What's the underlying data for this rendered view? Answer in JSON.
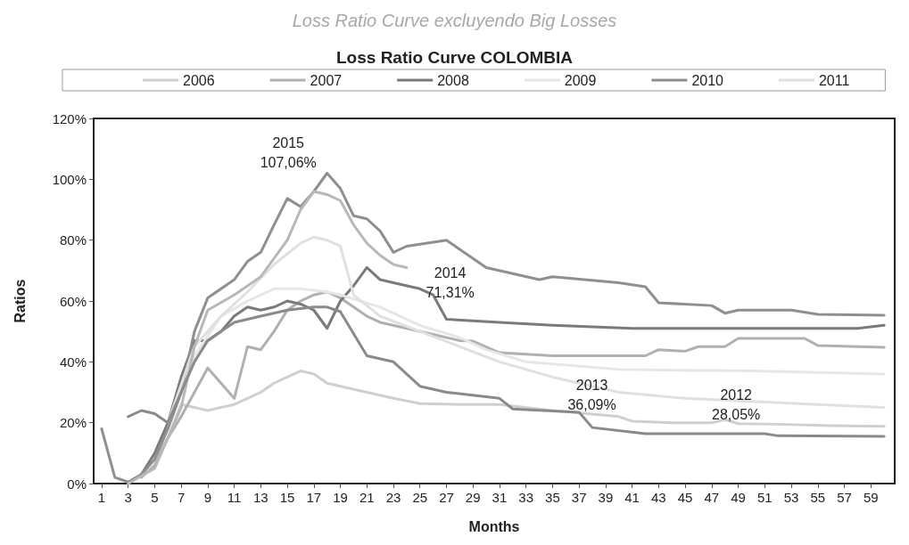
{
  "chart_data": {
    "type": "line",
    "title": "Loss Ratio Curve COLOMBIA",
    "xlabel": "Months",
    "ylabel": "Ratios",
    "xlim": [
      0.4,
      60.8
    ],
    "xticks": [
      1,
      3,
      5,
      7,
      9,
      11,
      13,
      15,
      17,
      19,
      21,
      23,
      25,
      27,
      29,
      31,
      33,
      35,
      37,
      39,
      41,
      43,
      45,
      47,
      49,
      51,
      53,
      55,
      57,
      59
    ],
    "ylim": [
      0,
      120
    ],
    "yticks": [
      {
        "value": 0,
        "label": "0%"
      },
      {
        "value": 20,
        "label": "20%"
      },
      {
        "value": 40,
        "label": "40%"
      },
      {
        "value": 60,
        "label": "60%"
      },
      {
        "value": 80,
        "label": "80%"
      },
      {
        "value": 100,
        "label": "100%"
      },
      {
        "value": 120,
        "label": "120%"
      }
    ],
    "grid": false,
    "legend": "top",
    "marker": "none",
    "line_style": "solid",
    "annotations": [
      "Loss Ratio Curve excluyendo Big Losses",
      "2015\n107,06%",
      "2014\n71,31%",
      "2013\n36,09%",
      "2012\n28,05%"
    ],
    "series": [
      {
        "name": "2006",
        "color": "#cfcfcf",
        "x": [
          4,
          5,
          6,
          7,
          8,
          9,
          10,
          11,
          12,
          13,
          14,
          15,
          16,
          17,
          18,
          19,
          21,
          23,
          25,
          28,
          31,
          35,
          40,
          41,
          44,
          47,
          48,
          49,
          52,
          56,
          60
        ],
        "values": [
          3,
          8,
          15,
          26,
          25,
          24,
          25,
          26,
          28,
          30,
          33,
          35,
          37,
          36,
          33,
          32,
          30,
          28,
          26.3,
          26,
          26,
          24,
          22,
          20.5,
          20,
          20,
          21,
          19.7,
          19.5,
          19,
          18.8
        ]
      },
      {
        "name": "2007",
        "color": "#b0b0b0",
        "x": [
          4,
          5,
          6,
          7,
          8,
          9,
          10,
          11,
          12,
          13,
          14,
          15,
          16,
          17,
          18,
          19,
          20,
          21,
          22,
          24,
          26,
          28,
          29,
          31,
          35,
          40,
          42,
          43,
          45,
          46,
          48,
          49,
          54,
          55,
          60
        ],
        "values": [
          2,
          6,
          15,
          22,
          30,
          38,
          33,
          28,
          45,
          44,
          50,
          57,
          60,
          62,
          63,
          61,
          58,
          55,
          53,
          51,
          49,
          47,
          46.8,
          43,
          42,
          42,
          42,
          44,
          43.5,
          45,
          45,
          47.7,
          47.7,
          45.4,
          44.8
        ]
      },
      {
        "name": "2008",
        "color": "#7a7a7a",
        "x": [
          3,
          4,
          5,
          6,
          7,
          8,
          9,
          10,
          11,
          12,
          13,
          14,
          15,
          16,
          17,
          18,
          19,
          20,
          21,
          22,
          23,
          25,
          26,
          27,
          31,
          35,
          41,
          50,
          58,
          60
        ],
        "values": [
          0,
          3,
          10,
          20,
          35,
          47,
          47,
          50,
          55,
          58,
          57,
          58,
          60,
          59,
          57,
          51,
          60,
          65,
          71,
          67,
          66,
          64,
          62,
          54,
          53,
          52,
          51,
          51,
          51,
          52
        ]
      },
      {
        "name": "2009",
        "color": "#e6e6e6",
        "x": [
          6,
          8,
          10,
          12,
          14,
          16,
          18,
          19,
          22,
          25,
          28,
          30,
          33,
          40,
          50,
          60
        ],
        "values": [
          18,
          42,
          55,
          60,
          64,
          64,
          63,
          62,
          58,
          52,
          48,
          44,
          40,
          37.5,
          37,
          36
        ]
      },
      {
        "name": "2010",
        "color": "#8f8f8f",
        "x": [
          1,
          2,
          3,
          4,
          5,
          6,
          7,
          8,
          9,
          11,
          12,
          13,
          14,
          15,
          16,
          17,
          18,
          19,
          20,
          21,
          22,
          23,
          24,
          27,
          28,
          30,
          34,
          35,
          40,
          42,
          43,
          47,
          48,
          49,
          53,
          55,
          60
        ],
        "values": [
          18,
          2,
          0.5,
          3,
          8,
          18,
          30,
          50,
          61,
          67,
          73,
          76,
          85,
          93.7,
          91,
          96,
          102,
          97,
          88,
          87,
          83,
          76,
          78,
          80,
          77,
          71,
          67,
          68,
          66,
          64.7,
          59.4,
          58.5,
          56,
          57,
          57,
          55.6,
          55.3
        ]
      },
      {
        "name": "2011",
        "color": "#e0e0e0",
        "x": [
          6,
          8,
          10,
          12,
          14,
          16,
          17,
          18,
          19,
          20,
          22,
          25,
          28,
          31,
          35,
          40,
          45,
          50,
          55,
          60
        ],
        "values": [
          20,
          45,
          55,
          63,
          72,
          79,
          81,
          80,
          78,
          62,
          55,
          50,
          45,
          40,
          35,
          30,
          28,
          27,
          26,
          25
        ]
      },
      {
        "color": "#b8b8b8",
        "x": [
          3,
          5,
          7,
          8,
          9,
          11,
          13,
          15,
          16,
          17,
          18,
          19,
          20,
          21,
          22,
          23,
          24
        ],
        "values": [
          0,
          5,
          25,
          45,
          57,
          62,
          68,
          80,
          90,
          96,
          95,
          93,
          85,
          79,
          75,
          72,
          71
        ]
      },
      {
        "color": "#8a8a8a",
        "x": [
          3,
          4,
          5,
          6,
          7,
          8,
          9,
          11,
          13,
          15,
          17,
          18,
          19,
          21,
          23,
          25,
          27,
          31,
          32,
          37,
          38,
          42,
          51,
          52,
          60
        ],
        "values": [
          22,
          24,
          23,
          20,
          30,
          40,
          47,
          53,
          55,
          57,
          58,
          58,
          56.5,
          42,
          40,
          32,
          30,
          28,
          24.5,
          23.4,
          18.4,
          16.4,
          16.4,
          15.7,
          15.5
        ]
      }
    ]
  }
}
